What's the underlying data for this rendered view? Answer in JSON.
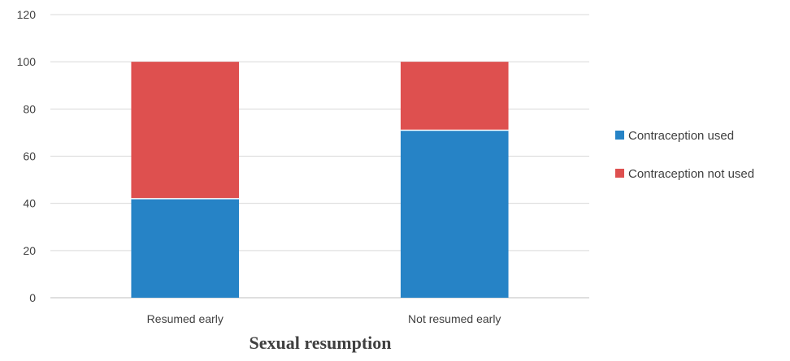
{
  "chart_data": {
    "type": "bar",
    "stacked": true,
    "categories": [
      "Resumed early",
      "Not resumed early"
    ],
    "series": [
      {
        "name": "Contraception used",
        "values": [
          42,
          71
        ],
        "color": "#2683c6"
      },
      {
        "name": "Contraception not used",
        "values": [
          58,
          29
        ],
        "color": "#de504f"
      }
    ],
    "xlabel": "Sexual resumption",
    "ylabel": "",
    "ylim": [
      0,
      120
    ],
    "yticks": [
      0,
      20,
      40,
      60,
      80,
      100,
      120
    ],
    "grid": true,
    "legend_position": "right"
  }
}
